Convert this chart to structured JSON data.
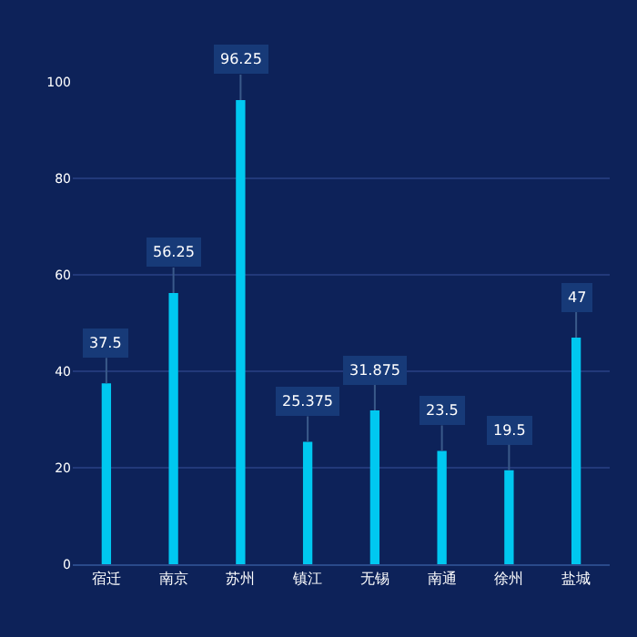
{
  "chart_data": {
    "type": "bar",
    "categories": [
      "宿迁",
      "南京",
      "苏州",
      "镇江",
      "无锡",
      "南通",
      "徐州",
      "盐城"
    ],
    "series": [
      {
        "color": "#00c8f0",
        "values": [
          37.5,
          56.25,
          96.25,
          25.375,
          31.875,
          23.5,
          19.5,
          47
        ]
      }
    ],
    "ylim": [
      0,
      100
    ],
    "yticks": [
      0,
      20,
      40,
      60,
      80,
      100
    ],
    "grid": "y",
    "data_labels": true
  }
}
